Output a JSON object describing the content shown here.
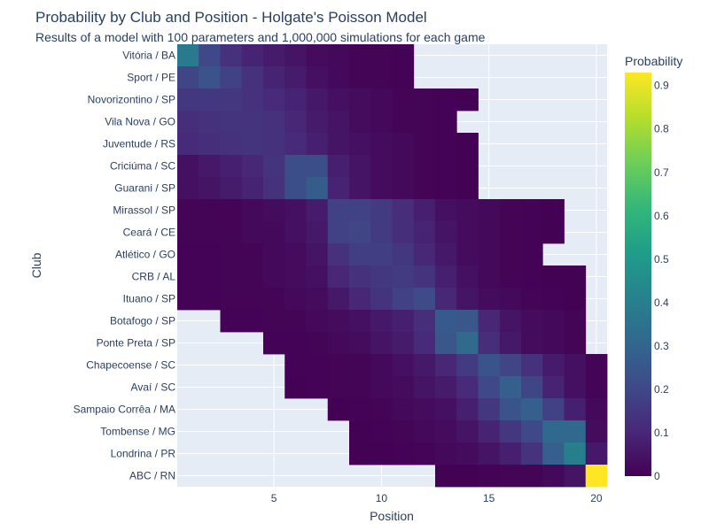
{
  "chart_data": {
    "type": "heatmap",
    "title": "Probability by Club and Position - Holgate's Poisson Model",
    "subtitle": "Results of a model with 100 parameters and 1,000,000 simulations for each game",
    "xlabel": "Position",
    "ylabel": "Club",
    "colorbar_title": "Probability",
    "colorscale": "viridis",
    "zmin": 0,
    "zmax": 0.93,
    "x": [
      1,
      2,
      3,
      4,
      5,
      6,
      7,
      8,
      9,
      10,
      11,
      12,
      13,
      14,
      15,
      16,
      17,
      18,
      19,
      20
    ],
    "x_ticks": [
      5,
      10,
      15,
      20
    ],
    "colorbar_ticks": [
      0,
      0.1,
      0.2,
      0.3,
      0.4,
      0.5,
      0.6,
      0.7,
      0.8,
      0.9
    ],
    "colors": {
      "background": "#e5ecf6",
      "grid": "#ffffff",
      "text": "#2a3f5f"
    },
    "clubs": [
      "Vitória / BA",
      "Sport / PE",
      "Novorizontino / SP",
      "Vila Nova / GO",
      "Juventude / RS",
      "Criciúma / SC",
      "Guarani / SP",
      "Mirassol / SP",
      "Ceará / CE",
      "Atlético / GO",
      "CRB / AL",
      "Ituano / SP",
      "Botafogo / SP",
      "Ponte Preta / SP",
      "Chapecoense / SC",
      "Avaí / SC",
      "Sampaio Corrêa / MA",
      "Tombense / MG",
      "Londrina / PR",
      "ABC / RN"
    ],
    "z": [
      [
        0.38,
        0.2,
        0.13,
        0.09,
        0.07,
        0.05,
        0.03,
        0.02,
        0.01,
        0.01,
        0.005,
        null,
        null,
        null,
        null,
        null,
        null,
        null,
        null,
        null
      ],
      [
        0.19,
        0.24,
        0.18,
        0.13,
        0.09,
        0.07,
        0.04,
        0.02,
        0.01,
        0.01,
        0.005,
        null,
        null,
        null,
        null,
        null,
        null,
        null,
        null,
        null
      ],
      [
        0.15,
        0.15,
        0.15,
        0.13,
        0.11,
        0.09,
        0.06,
        0.04,
        0.03,
        0.02,
        0.01,
        0.01,
        0.005,
        0.003,
        null,
        null,
        null,
        null,
        null,
        null
      ],
      [
        0.12,
        0.13,
        0.14,
        0.14,
        0.13,
        0.1,
        0.07,
        0.05,
        0.03,
        0.02,
        0.01,
        0.01,
        0.005,
        null,
        null,
        null,
        null,
        null,
        null,
        null
      ],
      [
        0.11,
        0.12,
        0.13,
        0.14,
        0.13,
        0.11,
        0.08,
        0.05,
        0.04,
        0.03,
        0.02,
        0.01,
        0.005,
        0.003,
        null,
        null,
        null,
        null,
        null,
        null
      ],
      [
        0.04,
        0.06,
        0.08,
        0.1,
        0.14,
        0.22,
        0.22,
        0.08,
        0.05,
        0.03,
        0.02,
        0.01,
        0.005,
        0.003,
        null,
        null,
        null,
        null,
        null,
        null
      ],
      [
        0.04,
        0.05,
        0.07,
        0.09,
        0.13,
        0.22,
        0.27,
        0.09,
        0.05,
        0.03,
        0.02,
        0.01,
        0.005,
        0.003,
        null,
        null,
        null,
        null,
        null,
        null
      ],
      [
        0.01,
        0.01,
        0.01,
        0.02,
        0.03,
        0.04,
        0.07,
        0.18,
        0.18,
        0.16,
        0.12,
        0.08,
        0.04,
        0.03,
        0.02,
        0.01,
        0.005,
        0.002,
        null,
        null
      ],
      [
        0.01,
        0.01,
        0.01,
        0.02,
        0.02,
        0.04,
        0.06,
        0.18,
        0.19,
        0.16,
        0.12,
        0.09,
        0.05,
        0.03,
        0.02,
        0.01,
        0.005,
        0.002,
        null,
        null
      ],
      [
        0.005,
        0.005,
        0.01,
        0.01,
        0.02,
        0.03,
        0.05,
        0.13,
        0.17,
        0.17,
        0.15,
        0.1,
        0.06,
        0.03,
        0.02,
        0.01,
        0.005,
        null,
        null,
        null
      ],
      [
        0.005,
        0.005,
        0.01,
        0.01,
        0.02,
        0.03,
        0.04,
        0.1,
        0.13,
        0.15,
        0.16,
        0.14,
        0.08,
        0.04,
        0.02,
        0.01,
        0.005,
        0.003,
        0.002,
        null
      ],
      [
        0.005,
        0.005,
        0.01,
        0.01,
        0.01,
        0.02,
        0.03,
        0.06,
        0.1,
        0.14,
        0.18,
        0.21,
        0.1,
        0.05,
        0.03,
        0.02,
        0.01,
        0.005,
        0.002,
        null
      ],
      [
        null,
        null,
        0.005,
        0.005,
        0.01,
        0.01,
        0.02,
        0.03,
        0.04,
        0.06,
        0.08,
        0.12,
        0.26,
        0.25,
        0.1,
        0.05,
        0.03,
        0.02,
        0.01,
        null
      ],
      [
        null,
        null,
        null,
        null,
        0.005,
        0.005,
        0.01,
        0.02,
        0.03,
        0.05,
        0.07,
        0.11,
        0.25,
        0.32,
        0.12,
        0.06,
        0.03,
        0.02,
        0.01,
        null
      ],
      [
        null,
        null,
        null,
        null,
        null,
        0.005,
        0.005,
        0.01,
        0.01,
        0.02,
        0.04,
        0.06,
        0.1,
        0.16,
        0.24,
        0.19,
        0.13,
        0.07,
        0.04,
        0.01
      ],
      [
        null,
        null,
        null,
        null,
        null,
        0.003,
        0.005,
        0.01,
        0.01,
        0.02,
        0.03,
        0.05,
        0.07,
        0.11,
        0.2,
        0.28,
        0.19,
        0.09,
        0.04,
        0.01
      ],
      [
        null,
        null,
        null,
        null,
        null,
        null,
        null,
        0.003,
        0.005,
        0.01,
        0.02,
        0.03,
        0.04,
        0.08,
        0.15,
        0.24,
        0.28,
        0.18,
        0.08,
        0.02
      ],
      [
        null,
        null,
        null,
        null,
        null,
        null,
        null,
        null,
        0.003,
        0.005,
        0.01,
        0.02,
        0.03,
        0.05,
        0.09,
        0.15,
        0.2,
        0.31,
        0.31,
        0.03
      ],
      [
        null,
        null,
        null,
        null,
        null,
        null,
        null,
        null,
        0.002,
        0.003,
        0.005,
        0.01,
        0.02,
        0.03,
        0.05,
        0.08,
        0.14,
        0.28,
        0.4,
        0.06
      ],
      [
        null,
        null,
        null,
        null,
        null,
        null,
        null,
        null,
        null,
        null,
        null,
        null,
        0.002,
        0.003,
        0.005,
        0.01,
        0.01,
        0.02,
        0.05,
        0.93
      ]
    ]
  }
}
